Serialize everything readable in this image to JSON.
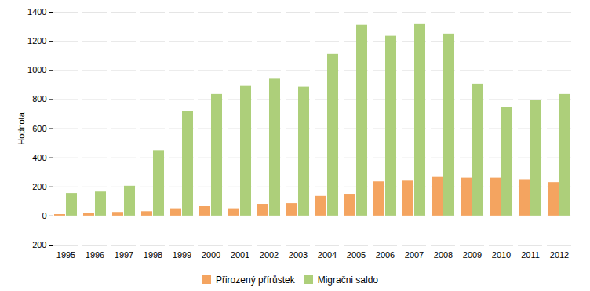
{
  "chart_data": {
    "type": "bar",
    "categories": [
      "1995",
      "1996",
      "1997",
      "1998",
      "1999",
      "2000",
      "2001",
      "2002",
      "2003",
      "2004",
      "2005",
      "2006",
      "2007",
      "2008",
      "2009",
      "2010",
      "2011",
      "2012"
    ],
    "series": [
      {
        "name": "Přirozený přírůstek",
        "color": "#F4A460",
        "values": [
          10,
          20,
          25,
          30,
          50,
          65,
          50,
          80,
          85,
          135,
          150,
          235,
          240,
          265,
          260,
          260,
          250,
          230
        ]
      },
      {
        "name": "Migračni saldo",
        "color": "#ADCF7A",
        "values": [
          155,
          165,
          205,
          450,
          720,
          835,
          890,
          940,
          885,
          1110,
          1310,
          1235,
          1320,
          1250,
          905,
          745,
          795,
          835
        ]
      }
    ],
    "ylabel": "Hodnota",
    "ylim": [
      -200,
      1400
    ],
    "yticks": [
      -200,
      0,
      200,
      400,
      600,
      800,
      1000,
      1200,
      1400
    ],
    "grid": true,
    "legend": "bottom"
  }
}
